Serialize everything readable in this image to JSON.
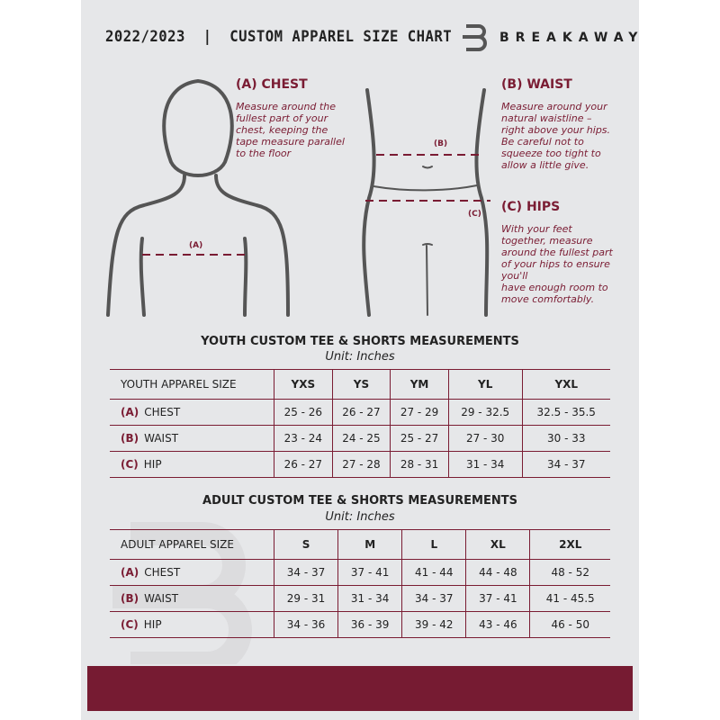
{
  "header": {
    "title": "2022/2023  |  CUSTOM APPAREL SIZE CHART",
    "brand": "BREAKAWAY",
    "logo_letter": "B"
  },
  "colors": {
    "accent": "#7a1c33",
    "background": "#e6e7e9"
  },
  "guides": {
    "chest": {
      "heading": "(A) CHEST",
      "text": "Measure around the\nfullest part of your\nchest, keeping the\ntape measure parallel\nto the floor",
      "marker": "(A)"
    },
    "waist": {
      "heading": "(B) WAIST",
      "text": "Measure around your\nnatural waistline –\nright above your hips.\nBe careful not to\nsqueeze too tight to\nallow a little give.",
      "marker": "(B)"
    },
    "hips": {
      "heading": "(C) HIPS",
      "text": "With your feet\ntogether, measure\naround the fullest part\nof your hips to ensure\nyou'll\nhave enough room to\nmove comfortably.",
      "marker": "(C)"
    }
  },
  "youth": {
    "title": "YOUTH CUSTOM TEE & SHORTS MEASUREMENTS",
    "unit": "Unit: Inches",
    "size_label": "YOUTH APPAREL SIZE",
    "sizes": [
      "YXS",
      "YS",
      "YM",
      "YL",
      "YXL"
    ],
    "rows": [
      {
        "letter": "(A)",
        "label": "CHEST",
        "values": [
          "25 - 26",
          "26 - 27",
          "27 - 29",
          "29 - 32.5",
          "32.5 - 35.5"
        ]
      },
      {
        "letter": "(B)",
        "label": "WAIST",
        "values": [
          "23 - 24",
          "24 - 25",
          "25 - 27",
          "27 - 30",
          "30 - 33"
        ]
      },
      {
        "letter": "(C)",
        "label": "HIP",
        "values": [
          "26 - 27",
          "27 - 28",
          "28 - 31",
          "31 - 34",
          "34 - 37"
        ]
      }
    ]
  },
  "adult": {
    "title": "ADULT CUSTOM TEE & SHORTS MEASUREMENTS",
    "unit": "Unit: Inches",
    "size_label": "ADULT APPAREL SIZE",
    "sizes": [
      "S",
      "M",
      "L",
      "XL",
      "2XL"
    ],
    "rows": [
      {
        "letter": "(A)",
        "label": "CHEST",
        "values": [
          "34 - 37",
          "37 - 41",
          "41 - 44",
          "44 - 48",
          "48 - 52"
        ]
      },
      {
        "letter": "(B)",
        "label": "WAIST",
        "values": [
          "29 - 31",
          "31 - 34",
          "34 - 37",
          "37 - 41",
          "41 - 45.5"
        ]
      },
      {
        "letter": "(C)",
        "label": "HIP",
        "values": [
          "34 - 36",
          "36 - 39",
          "39 - 42",
          "43 - 46",
          "46 - 50"
        ]
      }
    ]
  }
}
